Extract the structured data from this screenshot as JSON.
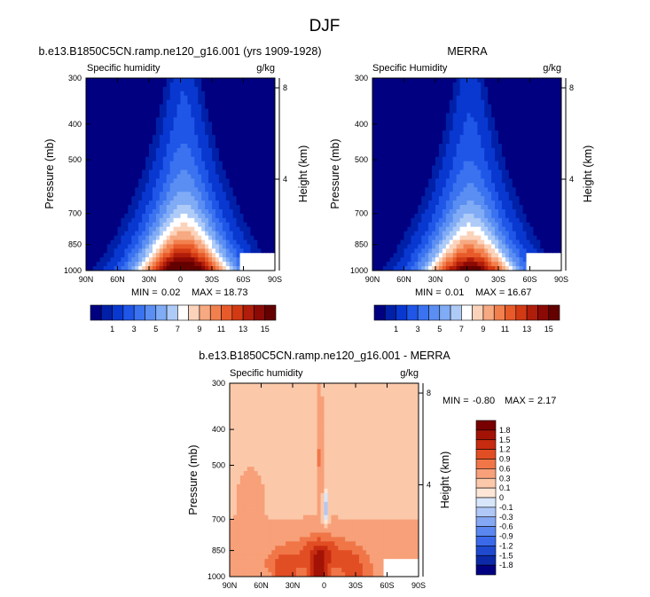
{
  "figure": {
    "title": "DJF"
  },
  "chart_data": [
    {
      "type": "heatmap",
      "title": "b.e13.B1850C5CN.ramp.ne120_g16.001 (yrs 1909-1928)",
      "subtitle_left": "Specific humidity",
      "subtitle_right": "g/kg",
      "xlabel": "",
      "ylabel": "Pressure (mb)",
      "y2label": "Height (km)",
      "x_ticks": [
        "90N",
        "60N",
        "30N",
        "0",
        "30S",
        "60S",
        "90S"
      ],
      "x_range": [
        90,
        -90
      ],
      "y_ticks": [
        "300",
        "400",
        "500",
        "700",
        "850",
        "1000"
      ],
      "y_tick_values": [
        300,
        400,
        500,
        700,
        850,
        1000
      ],
      "y_scale": "log",
      "y_range": [
        300,
        1000
      ],
      "y2_ticks": [
        "4",
        "8"
      ],
      "y2_tick_values": [
        4,
        8
      ],
      "stats": {
        "min_label": "MIN =",
        "min": "0.02",
        "max_label": "MAX =",
        "max": "18.73"
      },
      "field": {
        "peak": 18.3,
        "center_lat": -3,
        "lat_width_top": 13,
        "lat_width_bottom": 45,
        "scale_height": 0.43
      },
      "contour_levels": [
        0.5,
        1,
        2,
        3,
        4,
        5,
        6,
        7,
        8,
        9,
        10,
        11,
        12,
        13,
        14,
        15
      ],
      "colors": [
        "#000080",
        "#0020a8",
        "#0838d0",
        "#1f56e8",
        "#3a72f0",
        "#5a8ef2",
        "#80abf5",
        "#aecbf8",
        "#ffffff",
        "#fbd3bb",
        "#f7a981",
        "#f2804e",
        "#e85a2a",
        "#d23a14",
        "#b01d0a",
        "#8c0a05",
        "#650000"
      ],
      "colorbar_labels": [
        "1",
        "3",
        "5",
        "7",
        "9",
        "11",
        "13",
        "15"
      ]
    },
    {
      "type": "heatmap",
      "title": "MERRA",
      "subtitle_left": "Specific Humidity",
      "subtitle_right": "g/kg",
      "xlabel": "",
      "ylabel": "Pressure (mb)",
      "y2label": "Height (km)",
      "x_ticks": [
        "90N",
        "60N",
        "30N",
        "0",
        "30S",
        "60S",
        "90S"
      ],
      "x_range": [
        90,
        -90
      ],
      "y_ticks": [
        "300",
        "400",
        "500",
        "700",
        "850",
        "1000"
      ],
      "y_tick_values": [
        300,
        400,
        500,
        700,
        850,
        1000
      ],
      "y_scale": "log",
      "y_range": [
        300,
        1000
      ],
      "y2_ticks": [
        "4",
        "8"
      ],
      "y2_tick_values": [
        4,
        8
      ],
      "stats": {
        "min_label": "MIN =",
        "min": "0.01",
        "max_label": "MAX =",
        "max": "16.67"
      },
      "field": {
        "peak": 16.3,
        "center_lat": -3,
        "lat_width_top": 12,
        "lat_width_bottom": 44,
        "scale_height": 0.42
      },
      "contour_levels": [
        0.5,
        1,
        2,
        3,
        4,
        5,
        6,
        7,
        8,
        9,
        10,
        11,
        12,
        13,
        14,
        15
      ],
      "colors": [
        "#000080",
        "#0020a8",
        "#0838d0",
        "#1f56e8",
        "#3a72f0",
        "#5a8ef2",
        "#80abf5",
        "#aecbf8",
        "#ffffff",
        "#fbd3bb",
        "#f7a981",
        "#f2804e",
        "#e85a2a",
        "#d23a14",
        "#b01d0a",
        "#8c0a05",
        "#650000"
      ],
      "colorbar_labels": [
        "1",
        "3",
        "5",
        "7",
        "9",
        "11",
        "13",
        "15"
      ]
    },
    {
      "type": "heatmap",
      "title": "b.e13.B1850C5CN.ramp.ne120_g16.001 - MERRA",
      "subtitle_left": "Specific humidity",
      "subtitle_right": "g/kg",
      "xlabel": "",
      "ylabel": "Pressure (mb)",
      "y2label": "Height (km)",
      "x_ticks": [
        "90N",
        "60N",
        "30N",
        "0",
        "30S",
        "60S",
        "90S"
      ],
      "x_range": [
        90,
        -90
      ],
      "y_ticks": [
        "300",
        "400",
        "500",
        "700",
        "850",
        "1000"
      ],
      "y_tick_values": [
        300,
        400,
        500,
        700,
        850,
        1000
      ],
      "y_scale": "log",
      "y_range": [
        300,
        1000
      ],
      "y2_ticks": [
        "4",
        "8"
      ],
      "y2_tick_values": [
        4,
        8
      ],
      "stats": {
        "min_label": "MIN =",
        "min": "-0.80",
        "max_label": "MAX =",
        "max": "2.17"
      },
      "contour_levels": [
        -1.8,
        -1.5,
        -1.2,
        -0.9,
        -0.6,
        -0.3,
        -0.1,
        0,
        0.1,
        0.3,
        0.6,
        0.9,
        1.2,
        1.5,
        1.8
      ],
      "colors": [
        "#000080",
        "#0c2aa8",
        "#1f4ad0",
        "#3a6aea",
        "#5a88f0",
        "#85a8f4",
        "#b0c8f8",
        "#d8e6fb",
        "#fde6d6",
        "#fbc9aa",
        "#f7a079",
        "#f07648",
        "#e24e24",
        "#c72c10",
        "#a21306",
        "#780000"
      ],
      "colorbar_labels": [
        "1.8",
        "1.5",
        "1.2",
        "0.9",
        "0.6",
        "0.3",
        "0.1",
        "0",
        "-0.1",
        "-0.3",
        "-0.6",
        "-0.9",
        "-1.2",
        "-1.5",
        "-1.8"
      ]
    }
  ]
}
